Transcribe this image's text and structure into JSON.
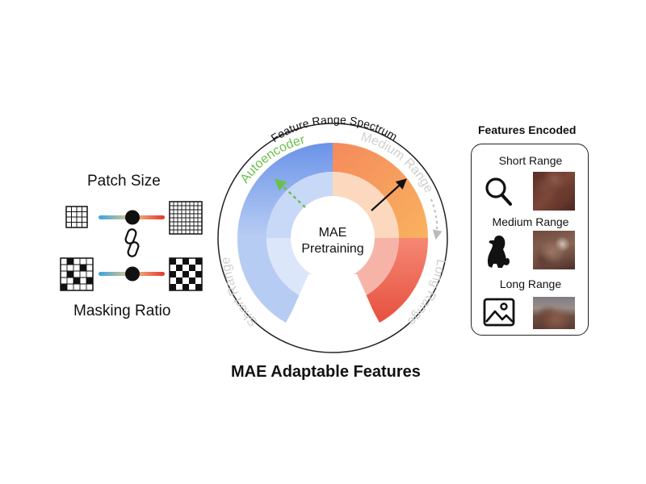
{
  "left": {
    "patch_size_label": "Patch Size",
    "masking_ratio_label": "Masking Ratio"
  },
  "wheel": {
    "spectrum_label": "Feature Range Spectrum",
    "autoencoder_label": "Autoencoder",
    "medium_range_label": "Medium Range",
    "long_range_label": "Long Range",
    "short_range_label": "Short Range",
    "center_line1": "MAE",
    "center_line2": "Pretraining"
  },
  "caption": "MAE Adaptable Features",
  "panel": {
    "title": "Features Encoded",
    "items": [
      {
        "label": "Short Range",
        "icon": "magnifier-icon"
      },
      {
        "label": "Medium Range",
        "icon": "dog-icon"
      },
      {
        "label": "Long Range",
        "icon": "image-icon"
      }
    ]
  },
  "colors": {
    "blue": "#6f98ea",
    "orange": "#f79a5e",
    "red": "#ea5a48",
    "green": "#6cbf4f",
    "gray": "#c8c8c8"
  }
}
